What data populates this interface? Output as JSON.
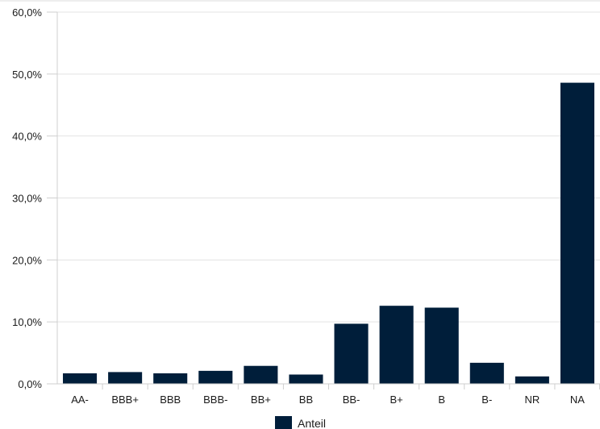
{
  "chart_data": {
    "type": "bar",
    "categories": [
      "AA-",
      "BBB+",
      "BBB",
      "BBB-",
      "BB+",
      "BB",
      "BB-",
      "B+",
      "B",
      "B-",
      "NR",
      "NA"
    ],
    "series": [
      {
        "name": "Anteil",
        "values": [
          1.7,
          1.9,
          1.7,
          2.1,
          2.9,
          1.5,
          9.7,
          12.6,
          12.3,
          3.4,
          1.2,
          48.6
        ]
      }
    ],
    "y_ticks": [
      "0,0%",
      "10,0%",
      "20,0%",
      "30,0%",
      "40,0%",
      "50,0%",
      "60,0%"
    ],
    "ylim": [
      0,
      60
    ],
    "grid": true,
    "legend_position": "bottom",
    "colors": {
      "bar": "#001e3a",
      "grid": "#e3e3e3",
      "axis": "#cfcfcf"
    }
  }
}
